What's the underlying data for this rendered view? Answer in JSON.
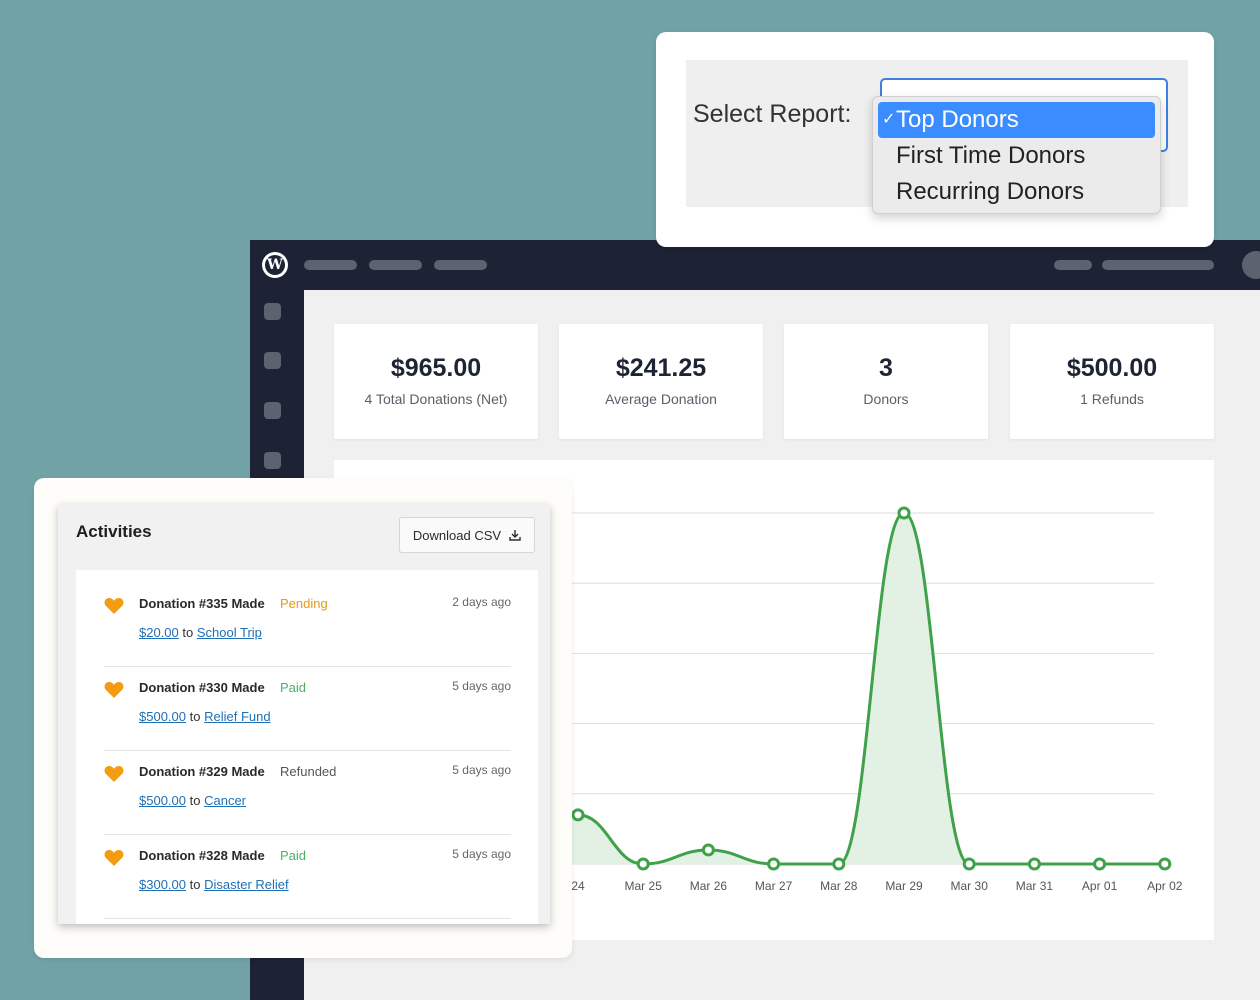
{
  "report": {
    "label": "Select Report:",
    "options": [
      "Top Donors",
      "First Time Donors",
      "Recurring Donors"
    ],
    "selected": "Top Donors"
  },
  "stats": [
    {
      "value": "$965.00",
      "label": "4 Total Donations (Net)"
    },
    {
      "value": "$241.25",
      "label": "Average Donation"
    },
    {
      "value": "3",
      "label": "Donors"
    },
    {
      "value": "$500.00",
      "label": "1 Refunds"
    }
  ],
  "activities": {
    "title": "Activities",
    "download_label": "Download CSV",
    "items": [
      {
        "name": "Donation #335 Made",
        "status": "Pending",
        "time": "2 days ago",
        "amount": "$20.00",
        "connector": "to",
        "target": "School Trip"
      },
      {
        "name": "Donation #330 Made",
        "status": "Paid",
        "time": "5 days ago",
        "amount": "$500.00",
        "connector": "to",
        "target": "Relief Fund"
      },
      {
        "name": "Donation #329 Made",
        "status": "Refunded",
        "time": "5 days ago",
        "amount": "$500.00",
        "connector": "to",
        "target": "Cancer"
      },
      {
        "name": "Donation #328 Made",
        "status": "Paid",
        "time": "5 days ago",
        "amount": "$300.00",
        "connector": "to",
        "target": "Disaster Relief"
      }
    ]
  },
  "colors": {
    "accent_green": "#3fa14a",
    "pending": "#e59a18",
    "paid": "#4caf66",
    "refunded": "#555555",
    "heart": "#f39c12",
    "link": "#1f6fb5",
    "select_highlight": "#3b8cff"
  },
  "chart_data": {
    "type": "area",
    "categories": [
      "24",
      "Mar 25",
      "Mar 26",
      "Mar 27",
      "Mar 28",
      "Mar 29",
      "Mar 30",
      "Mar 31",
      "Apr 01",
      "Apr 02"
    ],
    "values": [
      70,
      0,
      20,
      0,
      0,
      500,
      0,
      0,
      0,
      0
    ],
    "ylim": [
      0,
      500
    ],
    "grid": true,
    "color": "#3fa14a"
  }
}
